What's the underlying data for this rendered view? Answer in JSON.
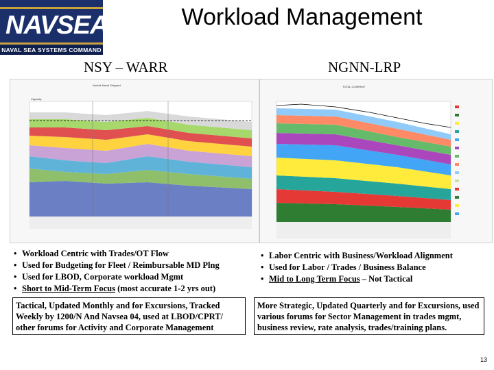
{
  "logo": {
    "name": "NAVSEA",
    "subtitle": "NAVAL SEA SYSTEMS COMMAND"
  },
  "title": "Workload Management",
  "left": {
    "heading": "NSY – WARR",
    "bullets": [
      "Workload Centric with Trades/OT Flow",
      "Used for Budgeting for Fleet / Reimbursable MD Plng",
      "Used for LBOD, Corporate workload Mgmt"
    ],
    "bullet4_underlined": "Short to Mid-Term Focus",
    "bullet4_rest": " (most accurate 1-2 yrs out)",
    "summary": "Tactical, Updated Monthly and for Excursions, Tracked Weekly by 1200/N And Navsea 04, used at LBOD/CPRT/ other forums for Activity and Corporate Management"
  },
  "right": {
    "heading": "NGNN-LRP",
    "bullets": [
      "Labor Centric with Business/Workload Alignment",
      "Used for Labor / Trades / Business Balance"
    ],
    "bullet3_underlined": "Mid to Long Term Focus",
    "bullet3_rest": " – Not Tactical",
    "summary": "More Strategic, Updated Quarterly and for Excursions, used various forums for Sector Management in trades mgmt, business review, rate analysis, trades/training plans."
  },
  "page_number": "13",
  "colors": {
    "navy": "#1b2f6b",
    "gold": "#c8a23a",
    "warr_layers": [
      "#6b7fc4",
      "#8fbf6a",
      "#d9d9d9",
      "#c9a2d6",
      "#ffd23f",
      "#5fb3d9",
      "#e05050",
      "#a6d86b",
      "#f2b04a",
      "#8ec6e8"
    ],
    "lrp_layers": [
      "#2e7d32",
      "#e53935",
      "#ffeb3b",
      "#26a69a",
      "#42a5f5",
      "#ab47bc",
      "#90caf9",
      "#66bb6a",
      "#ff8a65",
      "#c5e1a5"
    ]
  }
}
